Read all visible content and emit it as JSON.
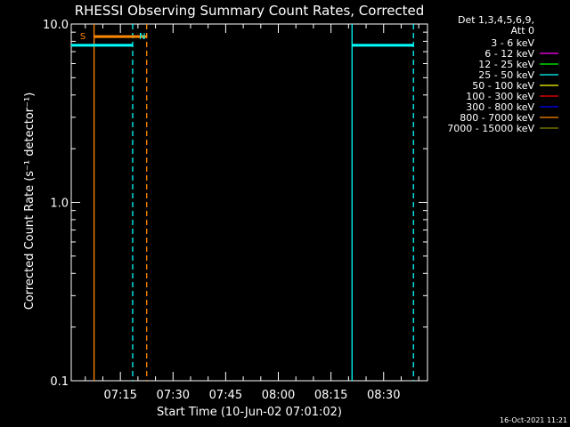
{
  "chart_data": {
    "type": "line",
    "title": "RHESSI Observing Summary Count Rates, Corrected",
    "xlabel": "Start Time (10-Jun-02 07:01:02)",
    "ylabel": "Corrected Count Rate (s⁻¹ detector⁻¹)",
    "y_scale": "log",
    "ylim": [
      0.1,
      10.0
    ],
    "y_ticks": [
      {
        "value": 0.1,
        "label": "0.1"
      },
      {
        "value": 1.0,
        "label": "1.0"
      },
      {
        "value": 10.0,
        "label": "10.0"
      }
    ],
    "x_start": "07:01:02",
    "xlim_min": [
      0,
      101.5
    ],
    "x_ticks": [
      {
        "min": 14,
        "label": "07:15"
      },
      {
        "min": 29,
        "label": "07:30"
      },
      {
        "min": 44,
        "label": "07:45"
      },
      {
        "min": 59,
        "label": "08:00"
      },
      {
        "min": 74,
        "label": "08:15"
      },
      {
        "min": 89,
        "label": "08:30"
      }
    ],
    "legend": {
      "placement": "top-right",
      "header": [
        "Det 1,3,4,5,6,9,",
        "Att 0"
      ],
      "entries": [
        {
          "label": "3 - 6 keV",
          "color": "#000000"
        },
        {
          "label": "6 - 12 keV",
          "color": "#ff00ff"
        },
        {
          "label": "12 - 25 keV",
          "color": "#00ff00"
        },
        {
          "label": "25 - 50 keV",
          "color": "#00ffff"
        },
        {
          "label": "50 - 100 keV",
          "color": "#ffff00"
        },
        {
          "label": "100 - 300 keV",
          "color": "#ff0000"
        },
        {
          "label": "300 - 800 keV",
          "color": "#0000ff"
        },
        {
          "label": "800 - 7000 keV",
          "color": "#ff8800"
        },
        {
          "label": "7000 - 15000 keV",
          "color": "#888800"
        }
      ]
    },
    "series": [
      {
        "color": "#00ffff",
        "segments": [
          [
            [
              0,
              7.6
            ],
            [
              17.5,
              7.6
            ]
          ],
          [
            [
              80,
              7.6
            ],
            [
              97.5,
              7.6
            ]
          ]
        ]
      },
      {
        "color": "#ff8800",
        "segments": [
          [
            [
              6.5,
              8.5
            ],
            [
              21.5,
              8.5
            ]
          ]
        ]
      }
    ],
    "markers": [
      {
        "min": 6.5,
        "color": "#ff8800",
        "style": "solid"
      },
      {
        "min": 17.5,
        "color": "#00ffff",
        "style": "dashed"
      },
      {
        "min": 21.5,
        "color": "#ff8800",
        "style": "dashed"
      },
      {
        "min": 80,
        "color": "#00ffff",
        "style": "solid"
      },
      {
        "min": 97.5,
        "color": "#00ffff",
        "style": "dashed"
      }
    ],
    "annotations": [
      {
        "text": "S",
        "min": 2.5,
        "color": "#ff8800"
      },
      {
        "text": "N",
        "min": 19.3,
        "color": "#00ffff"
      }
    ],
    "footer_timestamp": "16-Oct-2021 11:21"
  }
}
